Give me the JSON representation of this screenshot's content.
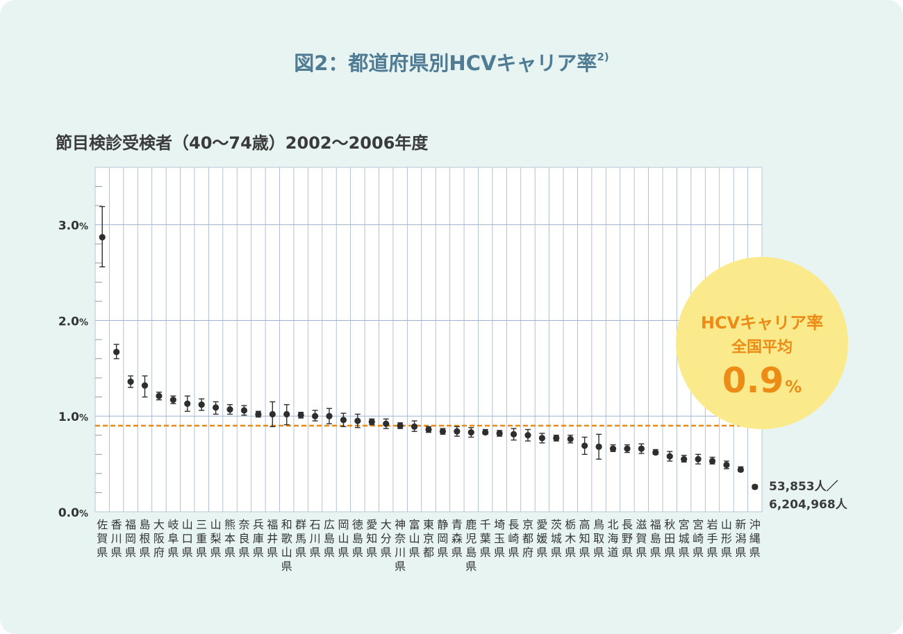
{
  "figure": {
    "title": "図2：都道府県別HCVキャリア率",
    "title_ref": "2)",
    "subtitle": "節目検診受検者（40〜74歳）2002〜2006年度"
  },
  "callout": {
    "line1": "HCVキャリア率",
    "line2": "全国平均",
    "value": "0.9",
    "unit": "%"
  },
  "sample_note": {
    "line1": "53,853人／",
    "line2": "6,204,968人"
  },
  "colors": {
    "background": "#e7f4f1",
    "plot_background": "#ffffff",
    "grid": "#9fb3cc",
    "marker": "#2e2e2e",
    "average_line": "#e88a12",
    "title": "#4f7b94",
    "callout_fill": "#faea8c",
    "callout_text": "#ec8b16"
  },
  "chart_data": {
    "type": "scatter",
    "marker": "point-with-error-bars",
    "ylim": [
      0,
      3.6
    ],
    "y_ticks": [
      0,
      1,
      2,
      3
    ],
    "y_tick_labels": [
      "0.0",
      "1.0",
      "2.0",
      "3.0"
    ],
    "y_unit": "%",
    "minor_ticks": true,
    "grid": true,
    "categories": [
      "佐賀県",
      "香川県",
      "福岡県",
      "島根県",
      "大阪府",
      "岐阜県",
      "山口県",
      "三重県",
      "山梨県",
      "熊本県",
      "奈良県",
      "兵庫県",
      "福井県",
      "和歌山県",
      "群馬県",
      "石川県",
      "広島県",
      "岡山県",
      "徳島県",
      "愛知県",
      "大分県",
      "神奈川県",
      "富山県",
      "東京都",
      "静岡県",
      "青森県",
      "鹿児島県",
      "千葉県",
      "埼玉県",
      "長崎県",
      "京都府",
      "愛媛県",
      "茨城県",
      "栃木県",
      "高知県",
      "鳥取県",
      "北海道",
      "長野県",
      "滋賀県",
      "福島県",
      "秋田県",
      "宮城県",
      "宮崎県",
      "岩手県",
      "山形県",
      "新潟県",
      "沖縄県"
    ],
    "values": [
      2.87,
      1.67,
      1.36,
      1.32,
      1.21,
      1.17,
      1.13,
      1.12,
      1.09,
      1.07,
      1.06,
      1.02,
      1.02,
      1.02,
      1.01,
      1.0,
      1.0,
      0.96,
      0.95,
      0.94,
      0.92,
      0.9,
      0.89,
      0.86,
      0.84,
      0.84,
      0.83,
      0.83,
      0.82,
      0.81,
      0.8,
      0.77,
      0.77,
      0.76,
      0.69,
      0.68,
      0.66,
      0.66,
      0.66,
      0.62,
      0.58,
      0.55,
      0.55,
      0.53,
      0.49,
      0.44,
      0.26
    ],
    "ci_low": [
      2.56,
      1.6,
      1.3,
      1.2,
      1.17,
      1.13,
      1.05,
      1.06,
      1.02,
      1.02,
      1.01,
      0.99,
      0.89,
      0.91,
      0.98,
      0.95,
      0.92,
      0.89,
      0.88,
      0.91,
      0.87,
      0.87,
      0.84,
      0.83,
      0.81,
      0.79,
      0.78,
      0.81,
      0.79,
      0.75,
      0.74,
      0.72,
      0.74,
      0.72,
      0.6,
      0.55,
      0.63,
      0.62,
      0.61,
      0.6,
      0.53,
      0.52,
      0.5,
      0.5,
      0.45,
      0.42,
      0.24
    ],
    "ci_high": [
      3.19,
      1.75,
      1.42,
      1.42,
      1.25,
      1.21,
      1.21,
      1.18,
      1.15,
      1.12,
      1.11,
      1.05,
      1.15,
      1.12,
      1.04,
      1.06,
      1.08,
      1.03,
      1.02,
      0.97,
      0.97,
      0.93,
      0.95,
      0.89,
      0.87,
      0.89,
      0.88,
      0.86,
      0.85,
      0.87,
      0.86,
      0.82,
      0.8,
      0.8,
      0.78,
      0.81,
      0.7,
      0.7,
      0.71,
      0.65,
      0.63,
      0.59,
      0.6,
      0.57,
      0.53,
      0.47,
      0.28
    ],
    "average": 0.9
  }
}
